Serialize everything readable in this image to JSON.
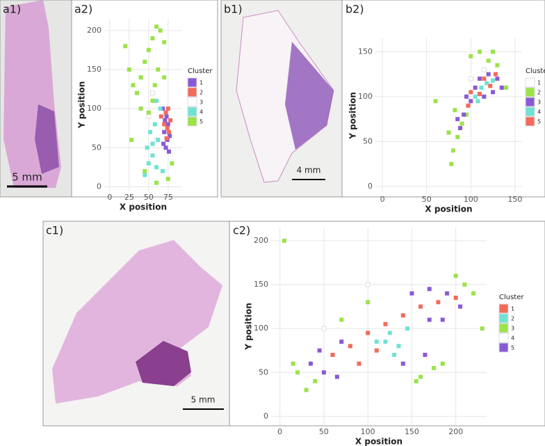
{
  "images": [
    {
      "label": "a1)",
      "scale_bar": "5 mm"
    },
    {
      "label": "b1)",
      "scale_bar": "4 mm"
    },
    {
      "label": "c1)",
      "scale_bar": "5 mm"
    }
  ],
  "chart_data": [
    {
      "type": "scatter",
      "label": "a2)",
      "x_label": "X position",
      "y_label": "Y position",
      "legend_title": "Cluster",
      "xlim": [
        -7,
        93
      ],
      "ylim": [
        -5,
        215
      ],
      "xticks": [
        0,
        25,
        50,
        75
      ],
      "yticks": [
        0,
        50,
        100,
        150,
        200
      ],
      "grid": true,
      "series": [
        {
          "name": "1",
          "color": "#8a5ad6",
          "x": [
            72,
            74,
            70,
            75,
            73,
            68,
            76,
            71,
            77,
            69
          ],
          "values": [
            50,
            60,
            70,
            80,
            90,
            100,
            45,
            85,
            65,
            55
          ]
        },
        {
          "name": "2",
          "color": "#f26b5b",
          "x": [
            74,
            70,
            76,
            72,
            78,
            66,
            73,
            75
          ],
          "values": [
            75,
            80,
            70,
            95,
            85,
            90,
            62,
            100
          ]
        },
        {
          "name": "3",
          "color": "#ffffff",
          "x": [
            60,
            55,
            50
          ],
          "values": [
            60,
            120,
            90
          ]
        },
        {
          "name": "4",
          "color": "#6fe3d3",
          "x": [
            50,
            55,
            60,
            48,
            62,
            58,
            65,
            52,
            68,
            45,
            60,
            55
          ],
          "values": [
            30,
            40,
            25,
            50,
            60,
            80,
            100,
            70,
            20,
            15,
            110,
            55
          ]
        },
        {
          "name": "5",
          "color": "#9be34a",
          "x": [
            20,
            25,
            30,
            40,
            45,
            50,
            55,
            60,
            65,
            70,
            62,
            58,
            55,
            50,
            40,
            35,
            70,
            80,
            45,
            60,
            75,
            28
          ],
          "values": [
            180,
            150,
            130,
            140,
            160,
            175,
            190,
            205,
            200,
            185,
            150,
            130,
            110,
            95,
            100,
            120,
            140,
            30,
            20,
            5,
            10,
            60
          ]
        }
      ]
    },
    {
      "type": "scatter",
      "label": "b2)",
      "x_label": "X position",
      "y_label": "Y position",
      "legend_title": "Cluster",
      "xlim": [
        -8,
        158
      ],
      "ylim": [
        -7,
        165
      ],
      "xticks": [
        0,
        50,
        100,
        150
      ],
      "yticks": [
        0,
        50,
        100,
        150
      ],
      "grid": true,
      "series": [
        {
          "name": "1",
          "color": "#ffffff",
          "x": [
            100,
            115
          ],
          "values": [
            120,
            130
          ]
        },
        {
          "name": "2",
          "color": "#9be34a",
          "x": [
            78,
            80,
            85,
            90,
            75,
            95,
            100,
            110,
            120,
            130,
            60,
            82,
            140,
            125
          ],
          "values": [
            25,
            40,
            55,
            70,
            60,
            80,
            145,
            150,
            140,
            135,
            95,
            85,
            110,
            150
          ]
        },
        {
          "name": "3",
          "color": "#8a5ad6",
          "x": [
            88,
            92,
            100,
            105,
            110,
            120,
            130,
            135,
            95,
            115,
            125,
            85
          ],
          "values": [
            65,
            80,
            95,
            110,
            120,
            125,
            120,
            110,
            100,
            100,
            105,
            75
          ]
        },
        {
          "name": "4",
          "color": "#6fe3d3",
          "x": [
            105,
            112,
            118,
            125,
            108
          ],
          "values": [
            100,
            110,
            115,
            118,
            95
          ]
        },
        {
          "name": "5",
          "color": "#f26b5b",
          "x": [
            100,
            115,
            122,
            128,
            110,
            97
          ],
          "values": [
            105,
            120,
            112,
            125,
            103,
            90
          ]
        }
      ]
    },
    {
      "type": "scatter",
      "label": "c2)",
      "x_label": "X position",
      "y_label": "Y position",
      "legend_title": "Cluster",
      "xlim": [
        -10,
        235
      ],
      "ylim": [
        -10,
        215
      ],
      "xticks": [
        0,
        50,
        100,
        150,
        200
      ],
      "yticks": [
        0,
        50,
        100,
        150,
        200
      ],
      "grid": true,
      "series": [
        {
          "name": "1",
          "color": "#f26b5b",
          "x": [
            60,
            80,
            100,
            120,
            140,
            160,
            180,
            90,
            110,
            200
          ],
          "values": [
            70,
            80,
            95,
            105,
            115,
            125,
            130,
            60,
            75,
            135
          ]
        },
        {
          "name": "2",
          "color": "#6fe3d3",
          "x": [
            110,
            125,
            135,
            145,
            130,
            120
          ],
          "values": [
            85,
            95,
            80,
            100,
            70,
            85
          ]
        },
        {
          "name": "3",
          "color": "#9be34a",
          "x": [
            20,
            30,
            40,
            15,
            210,
            200,
            220,
            160,
            175,
            185,
            155,
            100,
            70,
            5,
            230
          ],
          "values": [
            50,
            30,
            40,
            60,
            150,
            160,
            140,
            45,
            55,
            60,
            40,
            130,
            110,
            200,
            100
          ]
        },
        {
          "name": "4",
          "color": "#ffffff",
          "x": [
            50,
            100
          ],
          "values": [
            100,
            150
          ]
        },
        {
          "name": "5",
          "color": "#8a5ad6",
          "x": [
            35,
            50,
            65,
            70,
            150,
            170,
            190,
            205,
            140,
            165,
            185,
            170,
            45
          ],
          "values": [
            60,
            50,
            45,
            85,
            140,
            145,
            140,
            125,
            60,
            70,
            110,
            110,
            75
          ]
        }
      ]
    }
  ]
}
